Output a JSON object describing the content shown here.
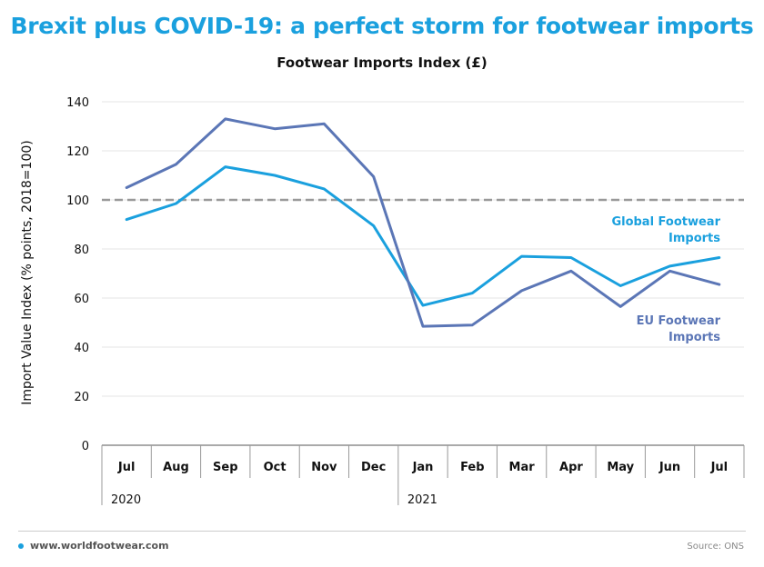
{
  "headline": "Brexit plus COVID-19: a perfect storm for footwear imports",
  "footer": {
    "site": "www.worldfootwear.com",
    "source": "Source: ONS"
  },
  "colors": {
    "global": "#1aa0de",
    "eu": "#5b76b6",
    "headline": "#1aa0de",
    "reference": "#999999"
  },
  "chart_data": {
    "type": "line",
    "title": "Footwear Imports Index (£)",
    "xlabel": "",
    "ylabel": "Import Value  Index (% points, 2018=100)",
    "categories": [
      "Jul",
      "Aug",
      "Sep",
      "Oct",
      "Nov",
      "Dec",
      "Jan",
      "Feb",
      "Mar",
      "Apr",
      "May",
      "Jun",
      "Jul"
    ],
    "years": [
      {
        "label": "2020",
        "start_index": 0
      },
      {
        "label": "2021",
        "start_index": 6
      }
    ],
    "ylim": [
      0,
      140
    ],
    "yticks": [
      0,
      20,
      40,
      60,
      80,
      100,
      120,
      140
    ],
    "grid": true,
    "reference_line": 100,
    "series": [
      {
        "name": "Global Footwear Imports",
        "label_lines": [
          "Global Footwear",
          "Imports"
        ],
        "values": [
          92,
          98.5,
          113.5,
          110,
          104.5,
          89.5,
          57,
          62,
          77,
          76.5,
          65,
          73,
          76.5
        ]
      },
      {
        "name": "EU Footwear Imports",
        "label_lines": [
          "EU Footwear",
          "Imports"
        ],
        "values": [
          105,
          114.5,
          133,
          129,
          131,
          109.5,
          48.5,
          49,
          63,
          71,
          56.5,
          71,
          65.5
        ]
      }
    ]
  }
}
